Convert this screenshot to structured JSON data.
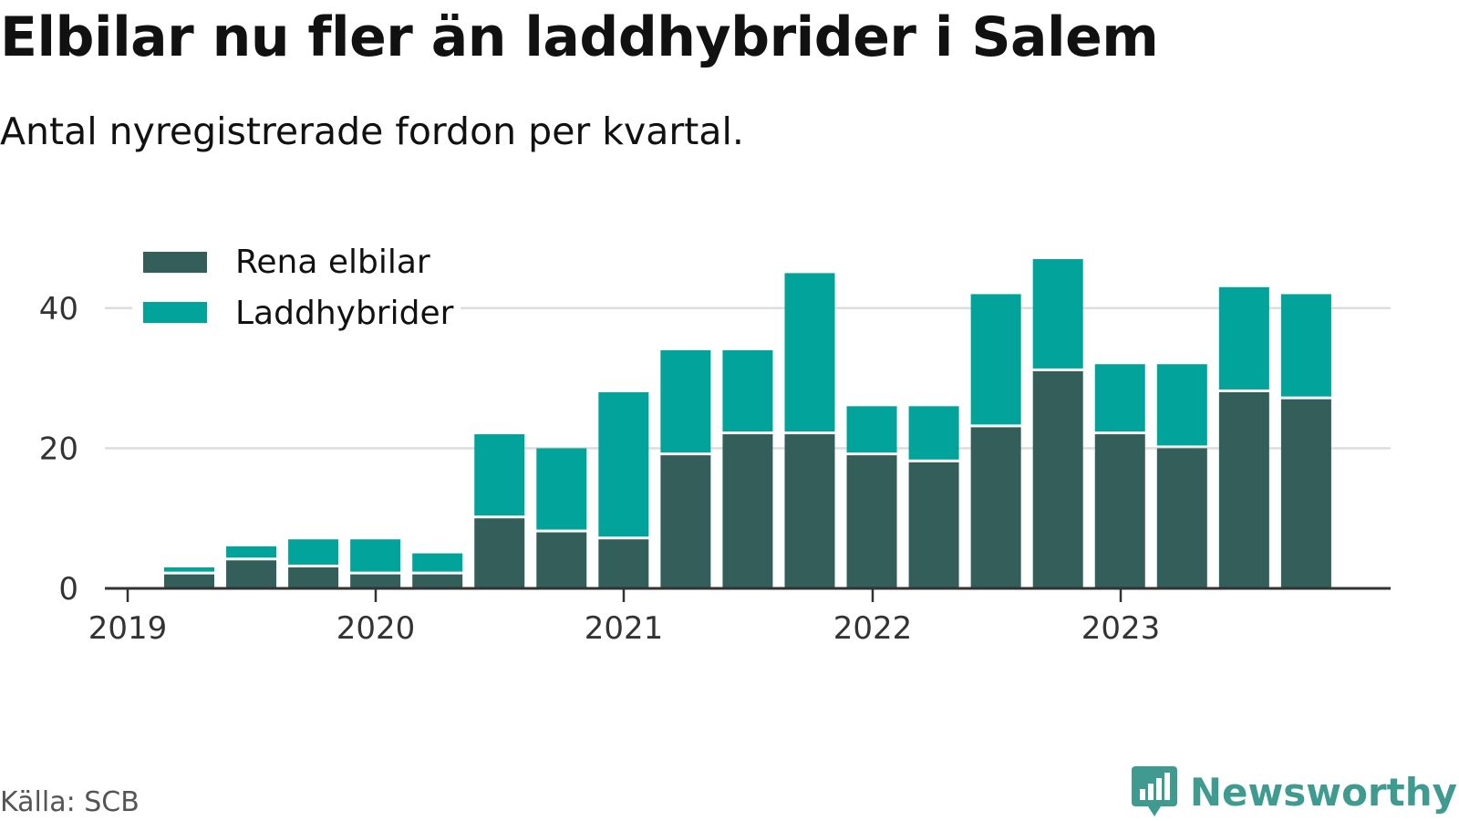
{
  "header": {
    "title": "Elbilar nu fler än laddhybrider i Salem",
    "subtitle": "Antal nyregistrerade fordon per kvartal."
  },
  "footer": {
    "source": "Källa: SCB",
    "brand": "Newsworthy",
    "brand_icon": "bar-chart-speech-bubble-icon"
  },
  "colors": {
    "rena_elbilar": "#335e5a",
    "laddhybrider": "#02a39a",
    "grid": "#dddddd",
    "axis": "#333333",
    "brand": "#3f9b90"
  },
  "chart_data": {
    "type": "bar",
    "stacked": true,
    "categories": [
      "2019 Q2",
      "2019 Q3",
      "2019 Q4",
      "2020 Q1",
      "2020 Q2",
      "2020 Q3",
      "2020 Q4",
      "2021 Q1",
      "2021 Q2",
      "2021 Q3",
      "2021 Q4",
      "2022 Q1",
      "2022 Q2",
      "2022 Q3",
      "2022 Q4",
      "2023 Q1",
      "2023 Q2",
      "2023 Q3",
      "2023 Q4"
    ],
    "series": [
      {
        "name": "Rena elbilar",
        "values": [
          2,
          4,
          3,
          2,
          2,
          10,
          8,
          7,
          19,
          22,
          22,
          19,
          18,
          23,
          31,
          22,
          20,
          28,
          27
        ]
      },
      {
        "name": "Laddhybrider",
        "values": [
          1,
          2,
          4,
          5,
          3,
          12,
          12,
          21,
          15,
          12,
          23,
          7,
          8,
          19,
          16,
          10,
          12,
          15,
          15
        ]
      }
    ],
    "x_ticks": [
      "2019",
      "2020",
      "2021",
      "2022",
      "2023"
    ],
    "y_ticks": [
      0,
      20,
      40
    ],
    "ylim": [
      0,
      47
    ],
    "grid": true,
    "legend": "top-left"
  }
}
